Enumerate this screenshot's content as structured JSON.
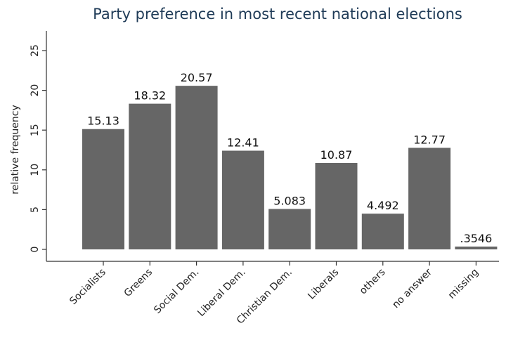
{
  "chart_data": {
    "type": "bar",
    "title": "Party preference in most recent national elections",
    "xlabel": "",
    "ylabel": "relative frequency",
    "ylim": [
      0,
      25
    ],
    "yticks": [
      0,
      5,
      10,
      15,
      20,
      25
    ],
    "grid": false,
    "categories": [
      "Socialists",
      "Greens",
      "Social Dem.",
      "Liberal Dem.",
      "Christian Dem.",
      "Liberals",
      "others",
      "no answer",
      "missing"
    ],
    "values": [
      15.13,
      18.32,
      20.57,
      12.41,
      5.083,
      10.87,
      4.492,
      12.77,
      0.3546
    ],
    "value_labels": [
      "15.13",
      "18.32",
      "20.57",
      "12.41",
      "5.083",
      "10.87",
      "4.492",
      "12.77",
      ".3546"
    ],
    "colors": {
      "bar": "#666666",
      "title": "#1f3b57"
    }
  }
}
